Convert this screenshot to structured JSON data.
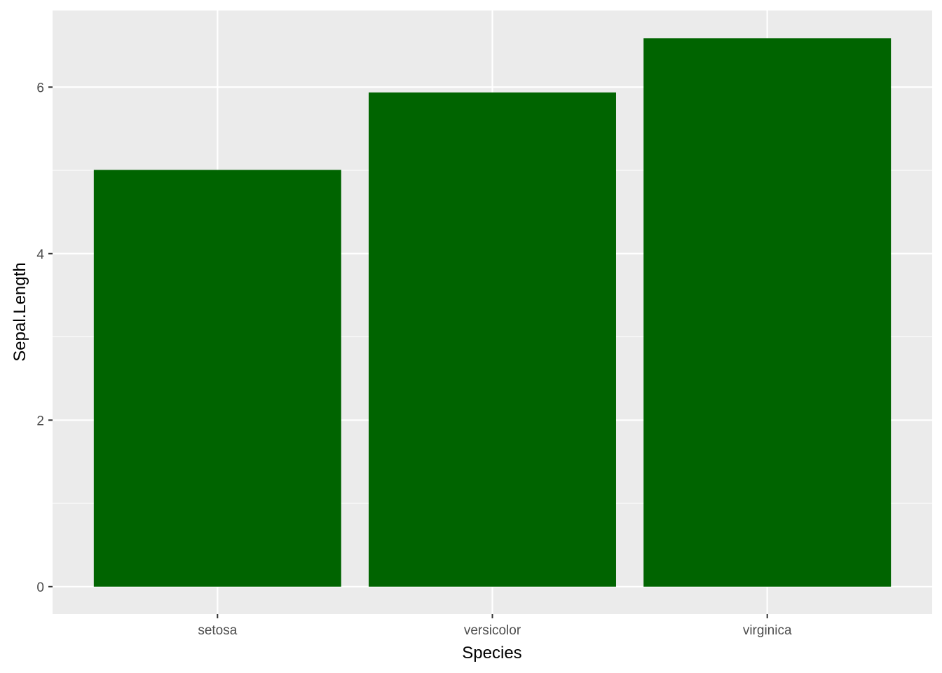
{
  "chart_data": {
    "type": "bar",
    "categories": [
      "setosa",
      "versicolor",
      "virginica"
    ],
    "values": [
      5.006,
      5.936,
      6.588
    ],
    "title": "",
    "xlabel": "Species",
    "ylabel": "Sepal.Length",
    "ylim": [
      -0.33,
      6.92
    ],
    "yticks": [
      0,
      2,
      4,
      6
    ],
    "ytick_labels": [
      "0",
      "2",
      "4",
      "6"
    ],
    "grid": true,
    "bar_color": "#006400",
    "panel_background": "#EBEBEB",
    "grid_color": "#FFFFFF"
  }
}
